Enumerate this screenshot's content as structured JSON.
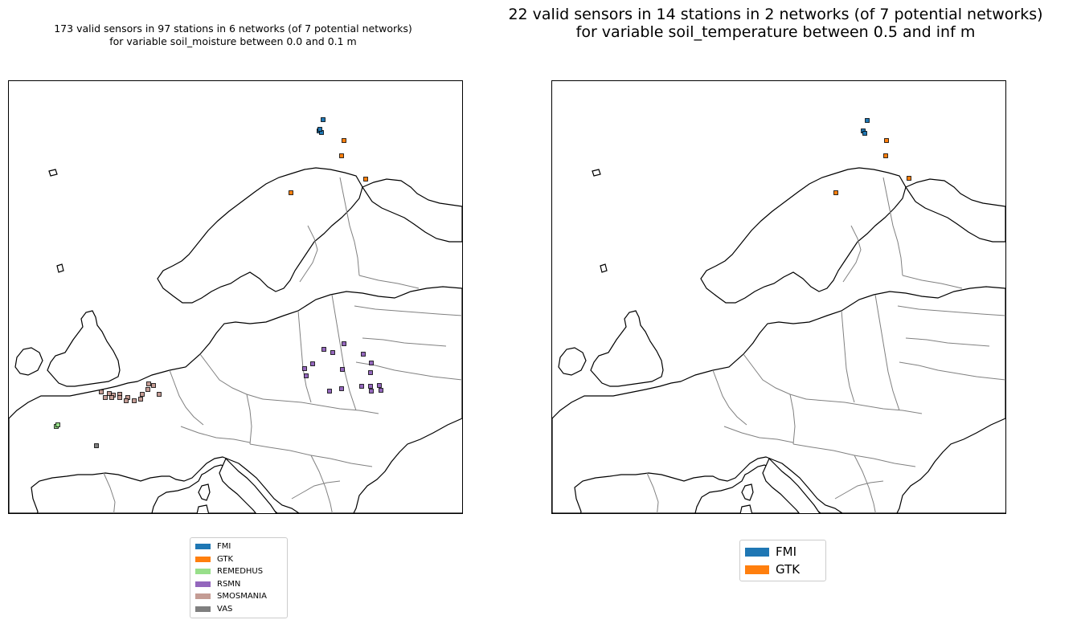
{
  "maps": [
    {
      "title": "173 valid sensors in 97 stations in 6 networks (of 7 potential networks)\nfor variable soil_moisture between 0.0 and 0.1 m",
      "legend": [
        {
          "label": "FMI",
          "color": "#1f77b4"
        },
        {
          "label": "GTK",
          "color": "#ff7f0e"
        },
        {
          "label": "REMEDHUS",
          "color": "#98df8a"
        },
        {
          "label": "RSMN",
          "color": "#9467bd"
        },
        {
          "label": "SMOSMANIA",
          "color": "#c49c94"
        },
        {
          "label": "VAS",
          "color": "#7f7f7f"
        }
      ]
    },
    {
      "title": "22 valid sensors in 14 stations in 2 networks (of 7 potential networks)\nfor variable soil_temperature between 0.5 and inf m",
      "legend": [
        {
          "label": "FMI",
          "color": "#1f77b4"
        },
        {
          "label": "GTK",
          "color": "#ff7f0e"
        }
      ]
    }
  ]
}
